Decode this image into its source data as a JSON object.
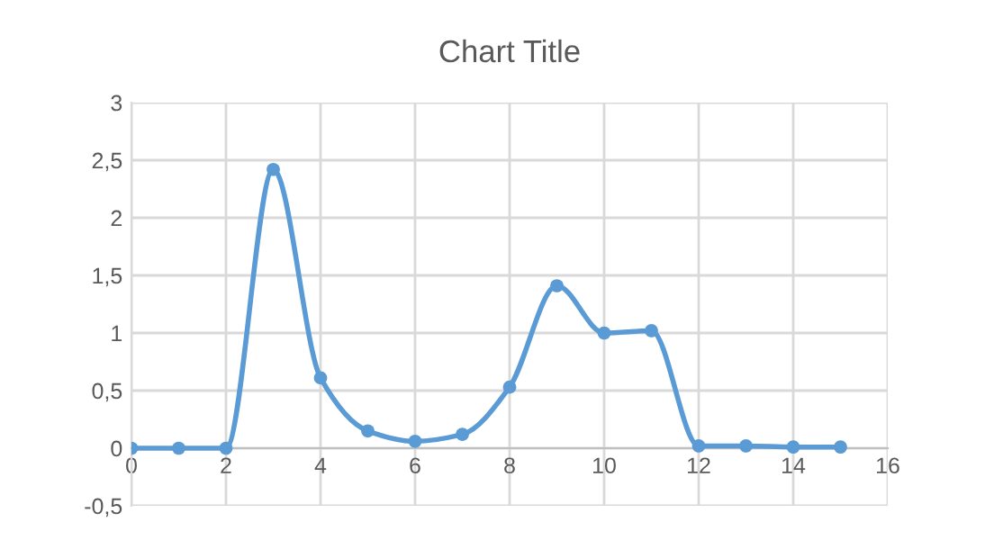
{
  "chart_data": {
    "type": "line",
    "title": "Chart Title",
    "x": [
      0,
      1,
      2,
      3,
      4,
      5,
      6,
      7,
      8,
      9,
      10,
      11,
      12,
      13,
      14,
      15
    ],
    "series": [
      {
        "color": "#5b9bd5",
        "values": [
          0,
          0,
          0,
          2.42,
          0.61,
          0.15,
          0.06,
          0.12,
          0.53,
          1.41,
          1.0,
          1.02,
          0.02,
          0.02,
          0.01,
          0.01
        ]
      }
    ],
    "xlim": [
      0,
      16
    ],
    "xticks": [
      0,
      2,
      4,
      6,
      8,
      10,
      12,
      14,
      16
    ],
    "ylim": [
      -0.5,
      3
    ],
    "yticks": [
      {
        "value": -0.5,
        "label": "-0,5"
      },
      0,
      {
        "value": 0.5,
        "label": "0,5"
      },
      1,
      {
        "value": 1.5,
        "label": "1,5"
      },
      2,
      {
        "value": 2.5,
        "label": "2,5"
      },
      3
    ],
    "grid": true,
    "marker": "circle",
    "line_style": "solid"
  }
}
